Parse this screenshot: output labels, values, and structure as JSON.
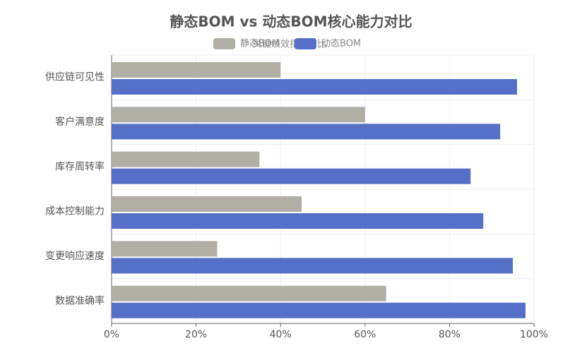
{
  "chart_data": {
    "type": "bar",
    "orientation": "horizontal",
    "title": "静态BOM vs 动态BOM核心能力对比",
    "subtitle": "关键绩效指标对比",
    "categories": [
      "供应链可见性",
      "客户满意度",
      "库存周转率",
      "成本控制能力",
      "变更响应速度",
      "数据准确率"
    ],
    "series": [
      {
        "name": "静态BOM",
        "color": "#b1aea5",
        "values": [
          40,
          60,
          35,
          45,
          25,
          65
        ]
      },
      {
        "name": "动态BOM",
        "color": "#5570c6",
        "values": [
          96,
          92,
          85,
          88,
          95,
          98
        ]
      }
    ],
    "xlim": [
      0,
      100
    ],
    "xticks": [
      {
        "value": 0,
        "label": "0%"
      },
      {
        "value": 20,
        "label": "20%"
      },
      {
        "value": 40,
        "label": "40%"
      },
      {
        "value": 60,
        "label": "60%"
      },
      {
        "value": 80,
        "label": "80%"
      },
      {
        "value": 100,
        "label": "100%"
      }
    ],
    "grid": true,
    "legend": "top"
  }
}
